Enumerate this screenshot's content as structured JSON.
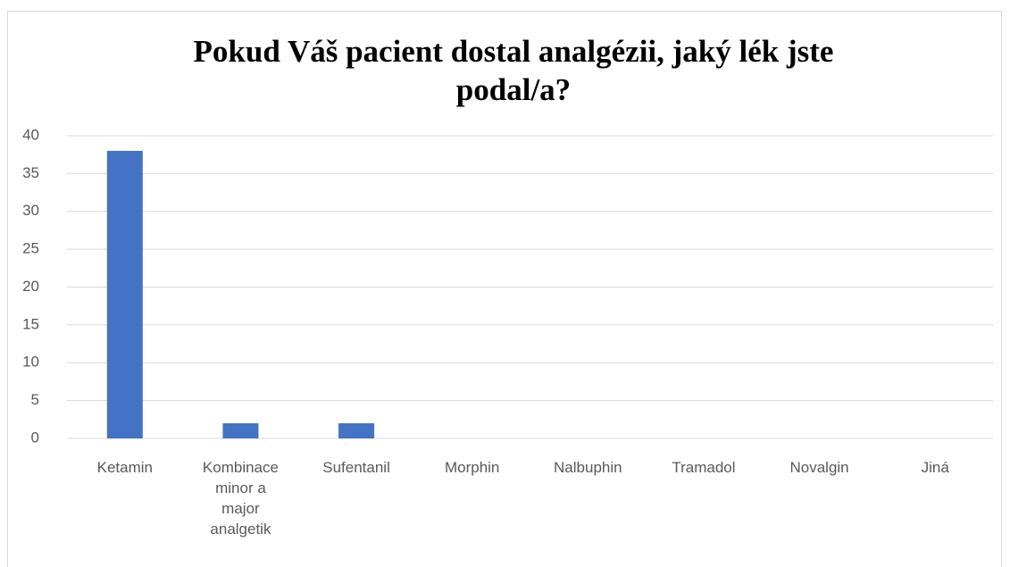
{
  "chart_data": {
    "type": "bar",
    "title": "Pokud Váš pacient dostal analgézii, jaký lék jste podal/a?",
    "categories": [
      "Ketamin",
      "Kombinace minor a major analgetik",
      "Sufentanil",
      "Morphin",
      "Nalbuphin",
      "Tramadol",
      "Novalgin",
      "Jiná"
    ],
    "values": [
      38,
      2,
      2,
      0,
      0,
      0,
      0,
      0
    ],
    "color": "#4472c4",
    "ylim": [
      0,
      40
    ],
    "yticks": [
      0,
      5,
      10,
      15,
      20,
      25,
      30,
      35,
      40
    ],
    "grid": true
  }
}
